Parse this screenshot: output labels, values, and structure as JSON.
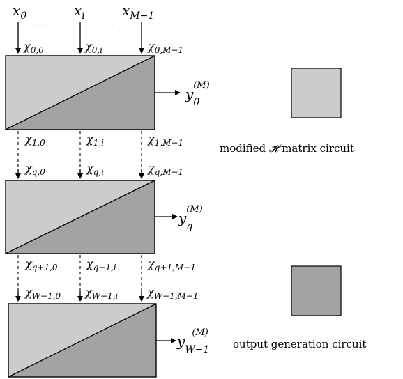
{
  "inputs": {
    "x0": {
      "base": "x",
      "sub": "0"
    },
    "xi": {
      "base": "x",
      "sub": "i"
    },
    "xM1": {
      "base": "x",
      "sub": "M−1"
    },
    "ellipsis": "- - -"
  },
  "rows": [
    {
      "chis": [
        {
          "base": "χ",
          "sub": "0,0"
        },
        {
          "base": "χ",
          "sub": "0,i"
        },
        {
          "base": "χ",
          "sub": "0,M−1"
        }
      ],
      "output": {
        "base": "y",
        "sub": "0",
        "sup": "(M)"
      }
    },
    {
      "chis_after": [
        {
          "base": "χ",
          "sub": "1,0"
        },
        {
          "base": "χ",
          "sub": "1,i"
        },
        {
          "base": "χ",
          "sub": "1,M−1"
        }
      ],
      "chis": [
        {
          "base": "χ",
          "sub": "q,0"
        },
        {
          "base": "χ",
          "sub": "q,i"
        },
        {
          "base": "χ",
          "sub": "q,M−1"
        }
      ],
      "output": {
        "base": "y",
        "sub": "q",
        "sup": "(M)"
      }
    },
    {
      "chis_after": [
        {
          "base": "χ",
          "sub": "q+1,0"
        },
        {
          "base": "χ",
          "sub": "q+1,i"
        },
        {
          "base": "χ",
          "sub": "q+1,M−1"
        }
      ],
      "chis": [
        {
          "base": "χ",
          "sub": "W−1,0"
        },
        {
          "base": "χ",
          "sub": "W−1,i"
        },
        {
          "base": "χ",
          "sub": "W−1,M−1"
        }
      ],
      "output": {
        "base": "y",
        "sub": "W−1",
        "sup": "(M)"
      }
    }
  ],
  "legend": {
    "modified": {
      "prefix": "modified ",
      "symbol": "𝓗",
      "suffix": " matrix circuit",
      "color": "#cccccc"
    },
    "output": {
      "label": "output generation circuit",
      "color": "#a3a3a3"
    }
  },
  "colors": {
    "light": "#cccccc",
    "dark": "#a3a3a3",
    "stroke": "#000000"
  }
}
